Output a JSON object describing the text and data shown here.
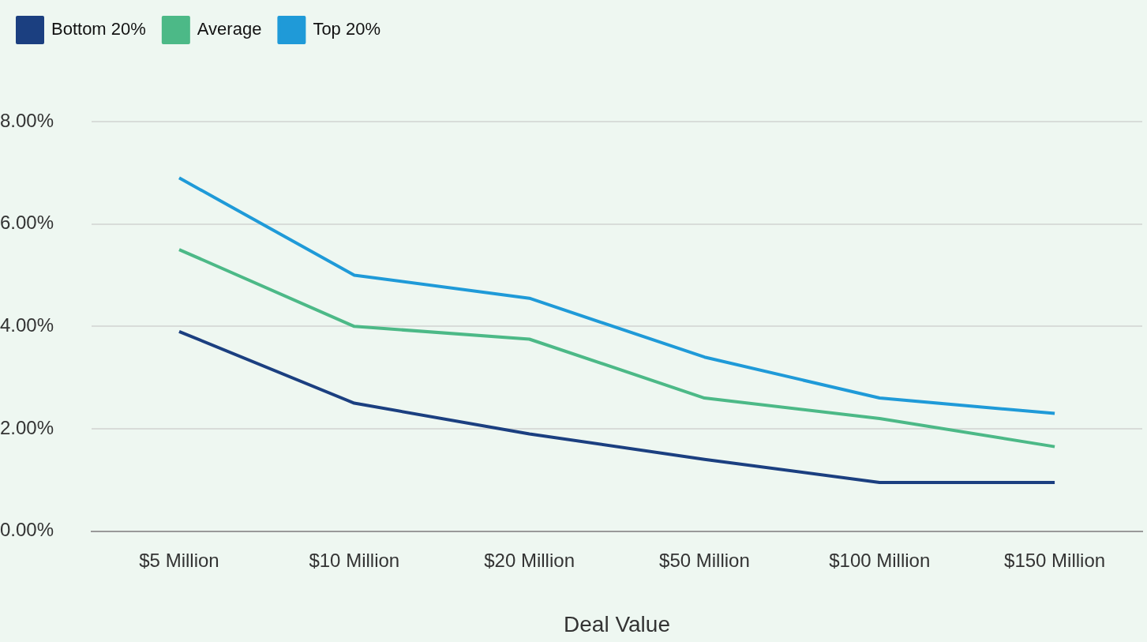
{
  "chart_data": {
    "type": "line",
    "xlabel": "Deal Value",
    "categories": [
      "$5 Million",
      "$10 Million",
      "$20 Million",
      "$50 Million",
      "$100 Million",
      "$150 Million"
    ],
    "series": [
      {
        "name": "Bottom 20%",
        "color": "#1b3f80",
        "values": [
          3.9,
          2.5,
          1.9,
          1.4,
          0.95,
          0.95
        ]
      },
      {
        "name": "Average",
        "color": "#4cb987",
        "values": [
          5.5,
          4.0,
          3.75,
          2.6,
          2.2,
          1.65
        ]
      },
      {
        "name": "Top 20%",
        "color": "#1f9ad8",
        "values": [
          6.9,
          5.0,
          4.55,
          3.4,
          2.6,
          2.3
        ]
      }
    ],
    "ylim": [
      0,
      8
    ],
    "yticks": [
      {
        "value": 0,
        "label": "0.00%"
      },
      {
        "value": 2,
        "label": "2.00%"
      },
      {
        "value": 4,
        "label": "4.00%"
      },
      {
        "value": 6,
        "label": "6.00%"
      },
      {
        "value": 8,
        "label": "8.00%"
      }
    ],
    "grid": "y",
    "legend": "top left",
    "marker": "none",
    "line_style": "solid"
  }
}
